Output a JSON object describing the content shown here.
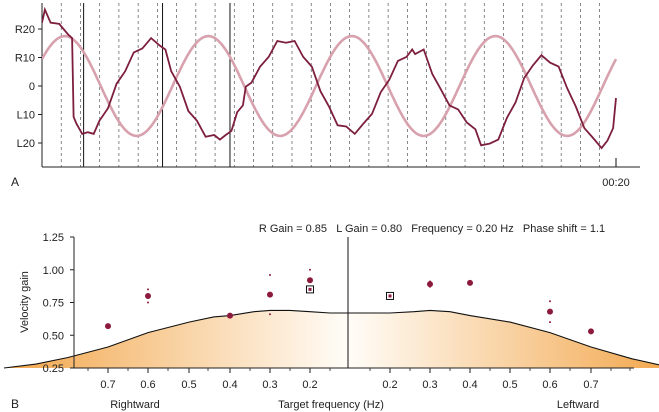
{
  "chart_data": [
    {
      "panel": "A",
      "type": "line",
      "y_tick_labels": [
        "R20",
        "R10",
        "0",
        "L10",
        "L20"
      ],
      "x_end_label": "00:20",
      "ylim": [
        -25,
        25
      ],
      "xlim": [
        0,
        20
      ],
      "grid": "vertical dashed every 0.67 s",
      "markers_s": [
        1.45,
        4.2,
        6.55
      ],
      "target": {
        "amplitude_deg": 17.5,
        "frequency_hz": 0.2,
        "phase_deg": 0,
        "color": "#d7a1ad"
      },
      "eye": {
        "color": "#7d1f3c",
        "t": [
          0.0,
          0.1,
          0.3,
          0.6,
          0.9,
          1.05,
          1.1,
          1.2,
          1.4,
          1.6,
          1.8,
          2.0,
          2.3,
          2.6,
          2.9,
          3.2,
          3.5,
          3.8,
          4.1,
          4.3,
          4.5,
          4.8,
          5.1,
          5.4,
          5.7,
          6.0,
          6.2,
          6.4,
          6.6,
          6.8,
          7.0,
          7.1,
          7.3,
          7.6,
          7.9,
          8.2,
          8.5,
          8.8,
          9.1,
          9.4,
          9.7,
          10.0,
          10.3,
          10.6,
          10.9,
          11.2,
          11.5,
          11.8,
          12.1,
          12.4,
          12.7,
          12.9,
          13.0,
          13.3,
          13.6,
          13.9,
          14.2,
          14.5,
          14.8,
          15.1,
          15.3,
          15.6,
          15.9,
          16.2,
          16.5,
          16.8,
          17.1,
          17.4,
          17.7,
          18.0,
          18.3,
          18.6,
          18.9,
          19.2,
          19.5,
          19.7,
          19.9,
          20.0
        ],
        "y": [
          23,
          26,
          23,
          21,
          19,
          16,
          -10,
          -14,
          -16,
          -17,
          -16,
          -13,
          -7,
          0,
          6,
          11,
          14,
          16,
          15,
          12,
          6,
          -1,
          -8,
          -13,
          -17,
          -18,
          -18,
          -18,
          -15,
          -10,
          -6,
          -1,
          2,
          6,
          11,
          15,
          16,
          15,
          11,
          6,
          -1,
          -8,
          -13,
          -15,
          -16,
          -14,
          -9,
          -3,
          3,
          8,
          11,
          12,
          12,
          12,
          5,
          -2,
          -6,
          -9,
          -12,
          -16,
          -20,
          -21,
          -18,
          -12,
          -5,
          2,
          8,
          10,
          9,
          6,
          0,
          -8,
          -14,
          -19,
          -21,
          -20,
          -14,
          -5
        ]
      }
    },
    {
      "panel": "B",
      "type": "scatter",
      "title": "R Gain = 0.85   L Gain = 0.80   Frequency = 0.20 Hz   Phase shift = 1.1",
      "ylabel": "Velocity gain",
      "xlabel": "Target frequency (Hz)",
      "x_side_labels": {
        "left": "Rightward",
        "right": "Leftward"
      },
      "x_tick_labels": [
        "0.7",
        "0.6",
        "0.5",
        "0.4",
        "0.3",
        "0.2",
        "0.2",
        "0.3",
        "0.4",
        "0.5",
        "0.6",
        "0.7"
      ],
      "y_tick_labels": [
        "0.25",
        "0.50",
        "0.75",
        "1.00",
        "1.25"
      ],
      "ylim": [
        0.25,
        1.25
      ],
      "x_positions_signed": [
        -0.7,
        -0.6,
        -0.5,
        -0.4,
        -0.3,
        -0.2,
        0.2,
        0.3,
        0.4,
        0.5,
        0.6,
        0.7
      ],
      "points": [
        {
          "x": -0.7,
          "y": 0.57,
          "err": 0
        },
        {
          "x": -0.6,
          "y": 0.8,
          "err": 0.05
        },
        {
          "x": -0.4,
          "y": 0.65,
          "err": 0
        },
        {
          "x": -0.3,
          "y": 0.81,
          "err": 0.15
        },
        {
          "x": -0.2,
          "y": 0.92,
          "err": 0.08
        },
        {
          "x": 0.3,
          "y": 0.89,
          "err": 0.02
        },
        {
          "x": 0.4,
          "y": 0.9,
          "err": 0
        },
        {
          "x": 0.6,
          "y": 0.68,
          "err": 0.08
        },
        {
          "x": 0.7,
          "y": 0.53,
          "err": 0
        }
      ],
      "highlight_points": [
        {
          "x": -0.2,
          "y": 0.85
        },
        {
          "x": 0.2,
          "y": 0.8
        }
      ],
      "norm_band": {
        "x": [
          -0.96,
          -0.88,
          -0.8,
          -0.7,
          -0.6,
          -0.5,
          -0.44,
          -0.4,
          -0.34,
          -0.3,
          -0.25,
          -0.2,
          -0.1,
          0.0,
          0.1,
          0.2,
          0.26,
          0.3,
          0.35,
          0.4,
          0.5,
          0.6,
          0.7,
          0.8,
          0.9
        ],
        "y": [
          0.25,
          0.28,
          0.33,
          0.41,
          0.52,
          0.6,
          0.64,
          0.65,
          0.68,
          0.69,
          0.69,
          0.68,
          0.67,
          0.67,
          0.67,
          0.67,
          0.68,
          0.69,
          0.68,
          0.65,
          0.6,
          0.52,
          0.41,
          0.32,
          0.25
        ]
      },
      "band_colors": [
        "#f2a64b",
        "#fbe8c6",
        "#fffdf8"
      ],
      "point_color": "#8b1a3c"
    }
  ]
}
